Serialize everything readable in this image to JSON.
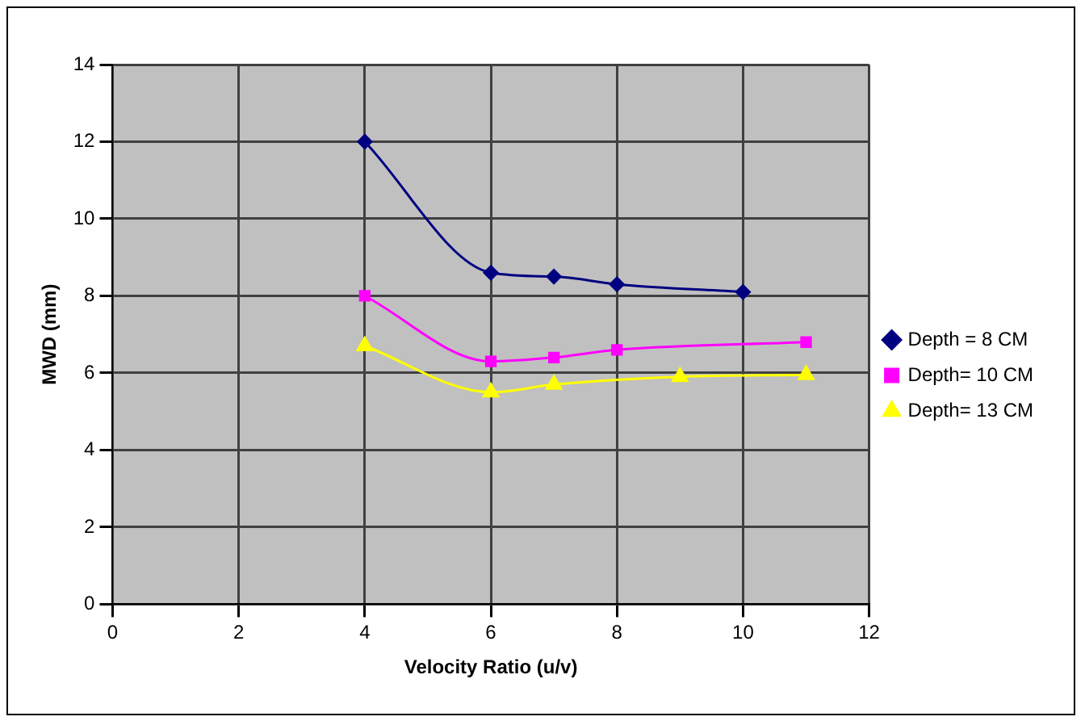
{
  "chart_data": {
    "type": "line",
    "xlabel": "Velocity Ratio (u/v)",
    "ylabel": "MWD (mm)",
    "xlim": [
      0,
      12
    ],
    "xticks": [
      0,
      2,
      4,
      6,
      8,
      10,
      12
    ],
    "ylim": [
      0,
      14
    ],
    "yticks": [
      0,
      2,
      4,
      6,
      8,
      10,
      12,
      14
    ],
    "grid": true,
    "legend": "right",
    "line_style": "solid",
    "series": [
      {
        "name": "Depth = 8 CM",
        "color": "#000080",
        "marker": "diamond",
        "x": [
          4,
          6,
          7,
          8,
          10
        ],
        "values": [
          12,
          8.6,
          8.5,
          8.3,
          8.1
        ]
      },
      {
        "name": "Depth= 10 CM",
        "color": "#ff00ff",
        "marker": "square",
        "x": [
          4,
          6,
          7,
          8,
          11
        ],
        "values": [
          8,
          6.3,
          6.4,
          6.6,
          6.8
        ]
      },
      {
        "name": "Depth= 13 CM",
        "color": "#ffff00",
        "marker": "triangle",
        "x": [
          4,
          6,
          7,
          9,
          11
        ],
        "values": [
          6.7,
          5.5,
          5.7,
          5.9,
          5.95
        ]
      }
    ]
  }
}
